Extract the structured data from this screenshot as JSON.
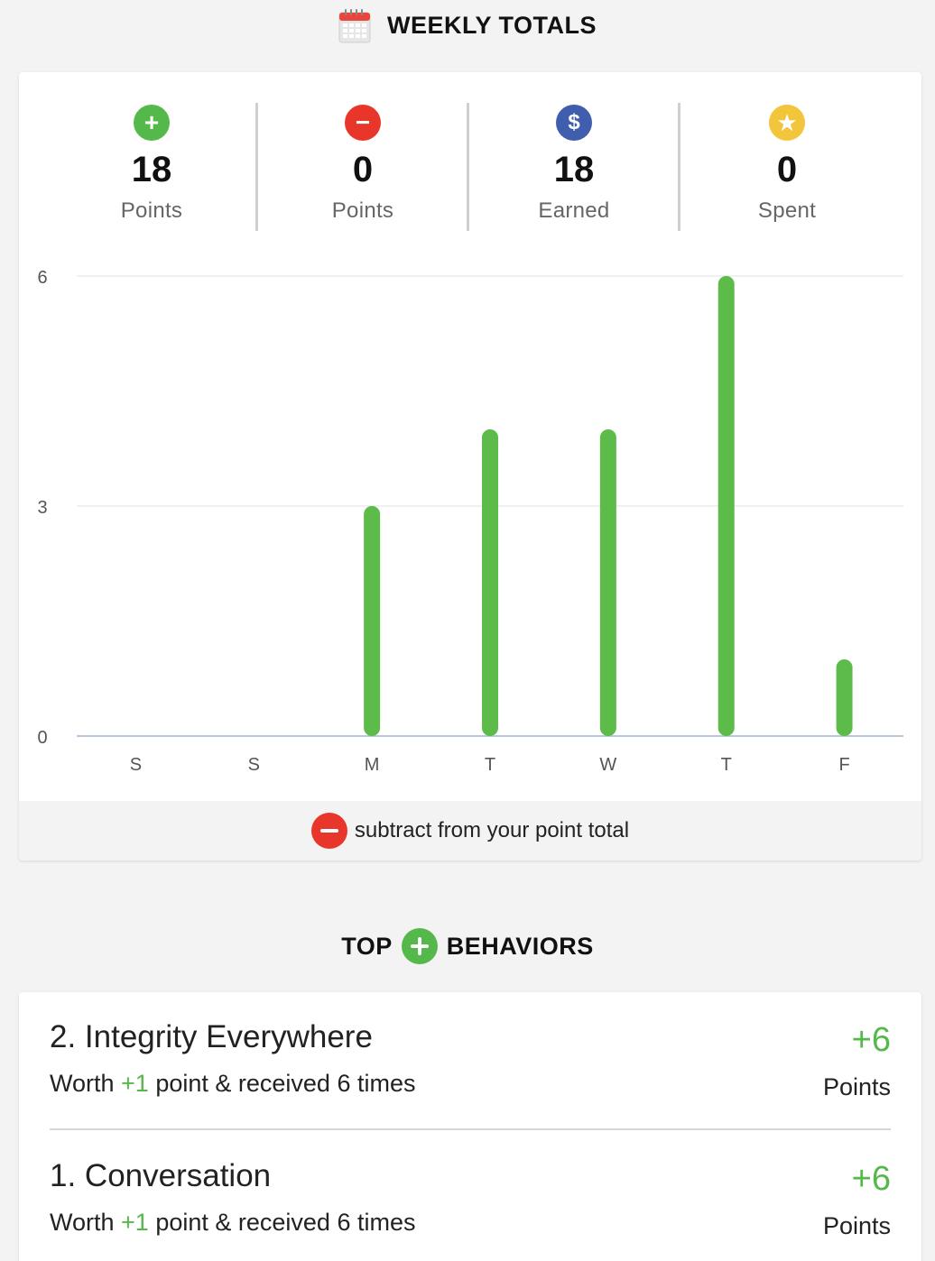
{
  "header": {
    "title": "WEEKLY TOTALS",
    "icon": "calendar-icon"
  },
  "stats": [
    {
      "icon": "plus-circle-icon",
      "color": "#55b84a",
      "glyph": "+",
      "value": "18",
      "label": "Points"
    },
    {
      "icon": "minus-circle-icon",
      "color": "#e8362a",
      "glyph": "−",
      "value": "0",
      "label": "Points"
    },
    {
      "icon": "dollar-circle-icon",
      "color": "#3f5fae",
      "glyph": "$",
      "value": "18",
      "label": "Earned"
    },
    {
      "icon": "star-circle-icon",
      "color": "#f3c53a",
      "glyph": "★",
      "value": "0",
      "label": "Spent"
    }
  ],
  "chart_data": {
    "type": "bar",
    "categories": [
      "S",
      "S",
      "M",
      "T",
      "W",
      "T",
      "F"
    ],
    "values": [
      0,
      0,
      3,
      4,
      4,
      6,
      1
    ],
    "ylim": [
      0,
      6
    ],
    "yticks": [
      "0",
      "3",
      "6"
    ],
    "grid": true,
    "bar_color": "#5dbb4a"
  },
  "legend": {
    "icon": "minus-circle-icon",
    "text": "subtract from your point total"
  },
  "top_behaviors": {
    "title_left": "TOP",
    "title_right": "BEHAVIORS",
    "icon": "plus-circle-icon",
    "items": [
      {
        "name": "2. Integrity Everywhere",
        "worth_prefix": "Worth ",
        "worth_value": "+1",
        "worth_mid": " point & received ",
        "times": "6",
        "worth_suffix": " times",
        "points": "+6",
        "points_label": "Points"
      },
      {
        "name": "1. Conversation",
        "worth_prefix": "Worth ",
        "worth_value": "+1",
        "worth_mid": " point & received ",
        "times": "6",
        "worth_suffix": " times",
        "points": "+6",
        "points_label": "Points"
      }
    ]
  }
}
